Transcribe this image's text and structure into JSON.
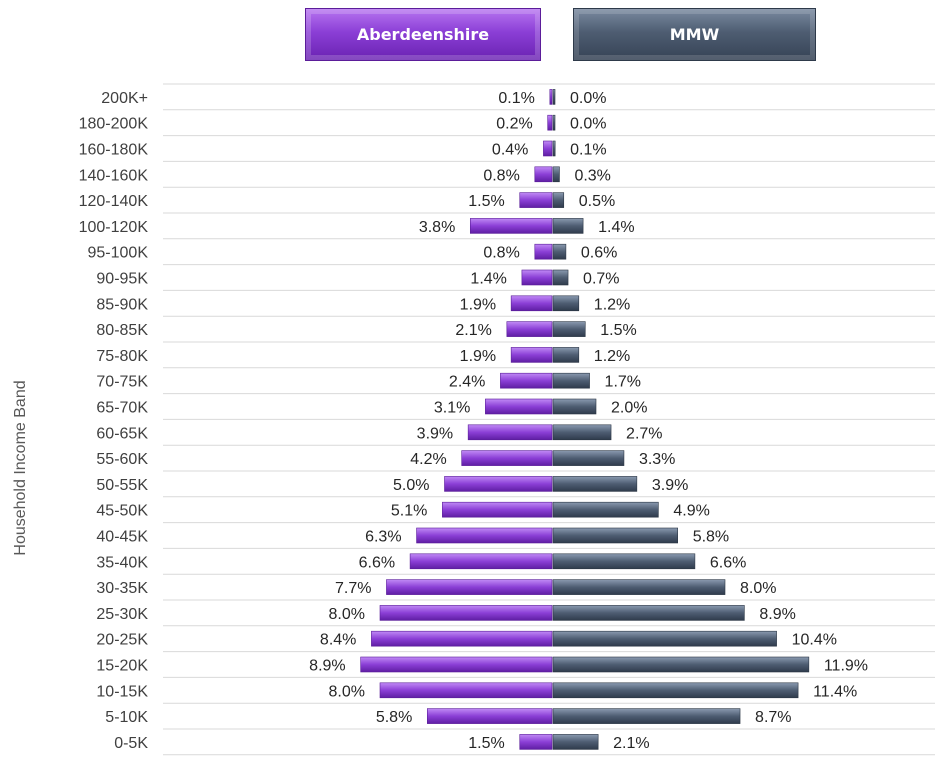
{
  "legend": {
    "left": "Aberdeenshire",
    "right": "MMW"
  },
  "colors": {
    "left": "#8b3fd6",
    "right": "#4e5d72",
    "grid": "#d9d9d9"
  },
  "chart_data": {
    "type": "bar",
    "orientation": "horizontal-butterfly",
    "ylabel": "Household Income Band",
    "categories": [
      "200K+",
      "180-200K",
      "160-180K",
      "140-160K",
      "120-140K",
      "100-120K",
      "95-100K",
      "90-95K",
      "85-90K",
      "80-85K",
      "75-80K",
      "70-75K",
      "65-70K",
      "60-65K",
      "55-60K",
      "50-55K",
      "45-50K",
      "40-45K",
      "35-40K",
      "30-35K",
      "25-30K",
      "20-25K",
      "15-20K",
      "10-15K",
      "5-10K",
      "0-5K"
    ],
    "series": [
      {
        "name": "Aberdeenshire",
        "values": [
          0.1,
          0.2,
          0.4,
          0.8,
          1.5,
          3.8,
          0.8,
          1.4,
          1.9,
          2.1,
          1.9,
          2.4,
          3.1,
          3.9,
          4.2,
          5.0,
          5.1,
          6.3,
          6.6,
          7.7,
          8.0,
          8.4,
          8.9,
          8.0,
          5.8,
          1.5
        ],
        "labels": [
          "0.1%",
          "0.2%",
          "0.4%",
          "0.8%",
          "1.5%",
          "3.8%",
          "0.8%",
          "1.4%",
          "1.9%",
          "2.1%",
          "1.9%",
          "2.4%",
          "3.1%",
          "3.9%",
          "4.2%",
          "5.0%",
          "5.1%",
          "6.3%",
          "6.6%",
          "7.7%",
          "8.0%",
          "8.4%",
          "8.9%",
          "8.0%",
          "5.8%",
          "1.5%"
        ]
      },
      {
        "name": "MMW",
        "values": [
          0.0,
          0.0,
          0.1,
          0.3,
          0.5,
          1.4,
          0.6,
          0.7,
          1.2,
          1.5,
          1.2,
          1.7,
          2.0,
          2.7,
          3.3,
          3.9,
          4.9,
          5.8,
          6.6,
          8.0,
          8.9,
          10.4,
          11.9,
          11.4,
          8.7,
          2.1
        ],
        "labels": [
          "0.0%",
          "0.0%",
          "0.1%",
          "0.3%",
          "0.5%",
          "1.4%",
          "0.6%",
          "0.7%",
          "1.2%",
          "1.5%",
          "1.2%",
          "1.7%",
          "2.0%",
          "2.7%",
          "3.3%",
          "3.9%",
          "4.9%",
          "5.8%",
          "6.6%",
          "8.0%",
          "8.9%",
          "10.4%",
          "11.9%",
          "11.4%",
          "8.7%",
          "2.1%"
        ]
      }
    ],
    "grid": true
  }
}
